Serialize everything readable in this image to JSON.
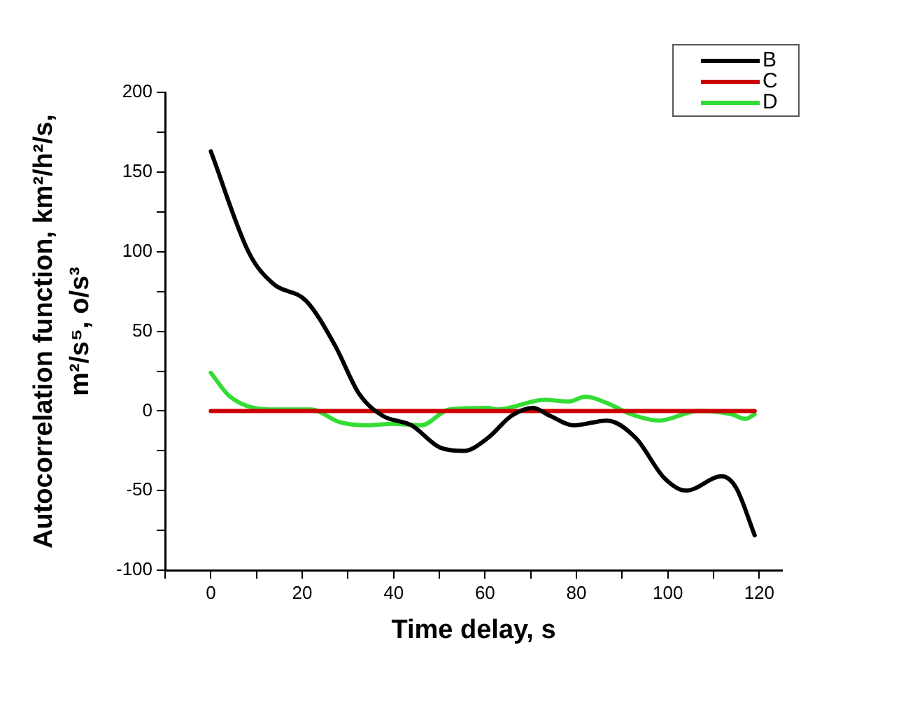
{
  "chart_data": {
    "type": "line",
    "xlabel": "Time delay, s",
    "ylabel": "Autocorrelation function, km²/h²/s, m²/s⁵, o/s³",
    "xlim": [
      -10,
      125
    ],
    "xticks": [
      {
        "value": -10,
        "label": null
      },
      0,
      {
        "value": 10,
        "label": null
      },
      20,
      {
        "value": 30,
        "label": null
      },
      40,
      {
        "value": 50,
        "label": null
      },
      60,
      {
        "value": 70,
        "label": null
      },
      80,
      {
        "value": 90,
        "label": null
      },
      100,
      {
        "value": 110,
        "label": null
      },
      120
    ],
    "ylim": [
      -100,
      200
    ],
    "yticks": [
      -100,
      {
        "value": -75,
        "label": null
      },
      -50,
      {
        "value": -25,
        "label": null
      },
      0,
      {
        "value": 25,
        "label": null
      },
      50,
      {
        "value": 75,
        "label": null
      },
      100,
      {
        "value": 125,
        "label": null
      },
      150,
      {
        "value": 175,
        "label": null
      },
      200
    ],
    "grid": false,
    "legend": "top right",
    "marker": "none",
    "line_style": "solid",
    "series": [
      {
        "name": "B",
        "color": "#000000",
        "x": [
          0,
          8.4,
          13.6,
          20.9,
          27.2,
          32.4,
          37.6,
          43.9,
          50.2,
          55.4,
          60.6,
          65.8,
          70.5,
          74.2,
          79.4,
          86.7,
          93,
          99.2,
          104,
          111.8,
          114.9,
          119
        ],
        "values": [
          163,
          99,
          80,
          69,
          41,
          11,
          -3,
          -9,
          -23,
          -25,
          -17,
          -3,
          2,
          -3,
          -9,
          -6,
          -17,
          -42,
          -50,
          -41,
          -48,
          -78
        ]
      },
      {
        "name": "C",
        "color": "#cc0000",
        "x": [
          0,
          119
        ],
        "values": [
          0,
          0
        ]
      },
      {
        "name": "D",
        "color": "#33dd33",
        "x": [
          0,
          4.2,
          12.5,
          21.9,
          28.2,
          34.5,
          39.7,
          46,
          52.2,
          60.6,
          62.7,
          73.1,
          78.3,
          82,
          86.7,
          91.9,
          98.2,
          106.6,
          113.9,
          117,
          119
        ],
        "values": [
          24,
          9,
          1,
          1,
          -7,
          -9,
          -8,
          -9,
          1,
          2,
          1,
          7,
          6,
          9,
          5,
          -2,
          -6,
          0,
          -2,
          -5,
          -2
        ]
      }
    ]
  }
}
